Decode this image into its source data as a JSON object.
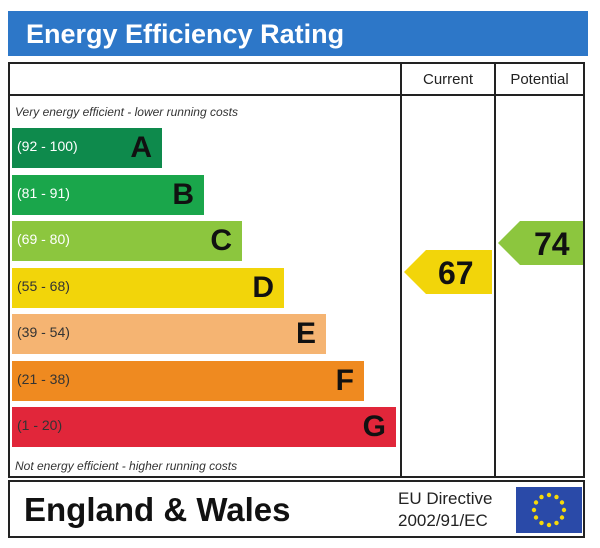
{
  "header": {
    "title": "Energy Efficiency Rating"
  },
  "columns": {
    "current": "Current",
    "potential": "Potential"
  },
  "captions": {
    "top": "Very energy efficient - lower running costs",
    "bottom": "Not energy efficient - higher running costs"
  },
  "bands": [
    {
      "range": "(92 - 100)",
      "letter": "A",
      "color": "#0e8a4c"
    },
    {
      "range": "(81 - 91)",
      "letter": "B",
      "color": "#1aa64b"
    },
    {
      "range": "(69 - 80)",
      "letter": "C",
      "color": "#8cc63e"
    },
    {
      "range": "(55 - 68)",
      "letter": "D",
      "color": "#f2d50a"
    },
    {
      "range": "(39 - 54)",
      "letter": "E",
      "color": "#f5b472"
    },
    {
      "range": "(21 - 38)",
      "letter": "F",
      "color": "#ef8a20"
    },
    {
      "range": "(1 - 20)",
      "letter": "G",
      "color": "#e1263a"
    }
  ],
  "ratings": {
    "current": {
      "value": "67",
      "color": "#f2d50a"
    },
    "potential": {
      "value": "74",
      "color": "#8cc63e"
    }
  },
  "footer": {
    "region": "England & Wales",
    "directive_line1": "EU Directive",
    "directive_line2": "2002/91/EC",
    "flag_icon": "eu-flag-icon",
    "flag_color": "#2a4aa8",
    "star_color": "#f5d90a"
  }
}
